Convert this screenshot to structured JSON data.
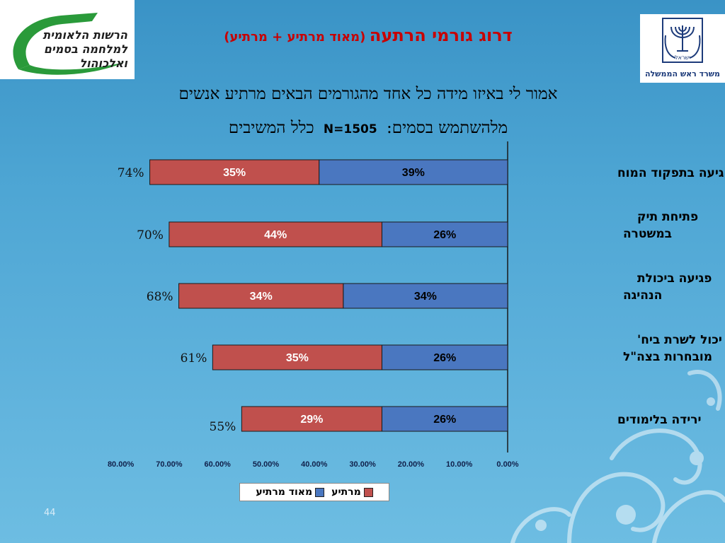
{
  "logos": {
    "left_lines": [
      "הרשות הלאומית",
      "למלחמה בסמים",
      "ואלכוהול"
    ],
    "right_caption": "משרד ראש הממשלה",
    "right_emblem_text": "ישראל"
  },
  "title": {
    "main": "דרוג גורמי הרתעה",
    "sub": "(מאוד מרתיע + מרתיע)"
  },
  "question": {
    "line1": "אמור לי באיזו מידה כל אחד מהגורמים הבאים מרתיע אנשים",
    "line2_text": "מלהשתמש בסמים:",
    "line2_n": "N=1505",
    "line2_tail": "כלל המשיבים"
  },
  "page_number": "44",
  "colors": {
    "very_deterring": "#4a77c0",
    "deterring": "#c0504d"
  },
  "chart_data": {
    "type": "bar",
    "orientation": "horizontal",
    "stacked": true,
    "direction": "right-to-left",
    "categories": [
      "פגיעה בתפקוד המוח",
      "פתיחת תיק במשטרה",
      "פגיעה ביכולת הנהיגה",
      "לא יכול לשרת ביח' מובחרות בצה\"ל",
      "ירידה בלימודים"
    ],
    "category_label_lines": [
      [
        "פגיעה בתפקוד המוח"
      ],
      [
        "פתיחת תיק",
        "במשטרה"
      ],
      [
        "פגיעה ביכולת",
        "הנהיגה"
      ],
      [
        "לא יכול לשרת ביח'",
        "מובחרות בצה\"ל"
      ],
      [
        "ירידה בלימודים"
      ]
    ],
    "series": [
      {
        "name": "מאוד מרתיע",
        "values": [
          39,
          26,
          34,
          26,
          26
        ],
        "labels": [
          "39%",
          "26%",
          "34%",
          "26%",
          "26%"
        ],
        "color": "#4a77c0"
      },
      {
        "name": "מרתיע",
        "values": [
          35,
          44,
          34,
          35,
          29
        ],
        "labels": [
          "35%",
          "44%",
          "34%",
          "35%",
          "29%"
        ],
        "color": "#c0504d"
      }
    ],
    "totals": [
      "74%",
      "70%",
      "68%",
      "61%",
      "55%"
    ],
    "x_ticks": [
      {
        "value": 80,
        "label": "80.00%"
      },
      {
        "value": 70,
        "label": "70.00%"
      },
      {
        "value": 60,
        "label": "60.00%"
      },
      {
        "value": 50,
        "label": "50.00%"
      },
      {
        "value": 40,
        "label": "40.00%"
      },
      {
        "value": 30,
        "label": "30.00%"
      },
      {
        "value": 20,
        "label": "20.00%"
      },
      {
        "value": 10,
        "label": "10.00%"
      },
      {
        "value": 0,
        "label": "0.00%"
      }
    ],
    "xlim": [
      0,
      80
    ],
    "legend": [
      "מרתיע",
      "מאוד מרתיע"
    ],
    "grid": false
  }
}
